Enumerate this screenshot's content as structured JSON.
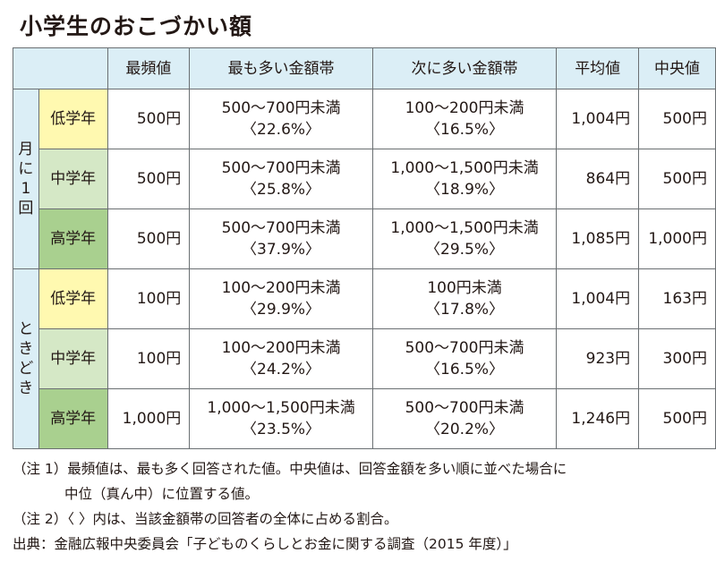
{
  "title": "小学生のおこづかい額",
  "headers": [
    "最頻値",
    "最も多い金額帯",
    "次に多い金額帯",
    "平均値",
    "中央値"
  ],
  "groups": [
    {
      "label": "月に1回",
      "rows": [
        {
          "grade": "低学年",
          "mode": "500円",
          "top1": "500〜700円未満",
          "top1_pct": "〈22.6%〉",
          "top2": "100〜200円未満",
          "top2_pct": "〈16.5%〉",
          "mean": "1,004円",
          "median": "500円"
        },
        {
          "grade": "中学年",
          "mode": "500円",
          "top1": "500〜700円未満",
          "top1_pct": "〈25.8%〉",
          "top2": "1,000〜1,500円未満",
          "top2_pct": "〈18.9%〉",
          "mean": "864円",
          "median": "500円"
        },
        {
          "grade": "高学年",
          "mode": "500円",
          "top1": "500〜700円未満",
          "top1_pct": "〈37.9%〉",
          "top2": "1,000〜1,500円未満",
          "top2_pct": "〈29.5%〉",
          "mean": "1,085円",
          "median": "1,000円"
        }
      ]
    },
    {
      "label": "ときどき",
      "rows": [
        {
          "grade": "低学年",
          "mode": "100円",
          "top1": "100〜200円未満",
          "top1_pct": "〈29.9%〉",
          "top2": "100円未満",
          "top2_pct": "〈17.8%〉",
          "mean": "1,004円",
          "median": "163円"
        },
        {
          "grade": "中学年",
          "mode": "100円",
          "top1": "100〜200円未満",
          "top1_pct": "〈24.2%〉",
          "top2": "500〜700円未満",
          "top2_pct": "〈16.5%〉",
          "mean": "923円",
          "median": "300円"
        },
        {
          "grade": "高学年",
          "mode": "1,000円",
          "top1": "1,000〜1,500円未満",
          "top1_pct": "〈23.5%〉",
          "top2": "500〜700円未満",
          "top2_pct": "〈20.2%〉",
          "mean": "1,246円",
          "median": "500円"
        }
      ]
    }
  ],
  "notes": {
    "note1_line1": "（注 1）最頻値は、最も多く回答された値。中央値は、回答金額を多い順に並べた場合に",
    "note1_line2": "中位（真ん中）に位置する値。",
    "note2": "（注 2）〈 〉内は、当該金額帯の回答者の全体に占める割合。",
    "source": "出典：金融広報中央委員会「子どものくらしとお金に関する調査（2015 年度）」"
  }
}
